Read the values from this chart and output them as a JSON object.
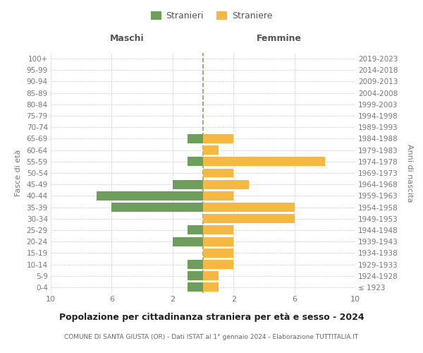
{
  "age_groups": [
    "100+",
    "95-99",
    "90-94",
    "85-89",
    "80-84",
    "75-79",
    "70-74",
    "65-69",
    "60-64",
    "55-59",
    "50-54",
    "45-49",
    "40-44",
    "35-39",
    "30-34",
    "25-29",
    "20-24",
    "15-19",
    "10-14",
    "5-9",
    "0-4"
  ],
  "birth_years": [
    "≤ 1923",
    "1924-1928",
    "1929-1933",
    "1934-1938",
    "1939-1943",
    "1944-1948",
    "1949-1953",
    "1954-1958",
    "1959-1963",
    "1964-1968",
    "1969-1973",
    "1974-1978",
    "1979-1983",
    "1984-1988",
    "1989-1993",
    "1994-1998",
    "1999-2003",
    "2004-2008",
    "2009-2013",
    "2014-2018",
    "2019-2023"
  ],
  "males": [
    0,
    0,
    0,
    0,
    0,
    0,
    0,
    1,
    0,
    1,
    0,
    2,
    7,
    6,
    0,
    1,
    2,
    0,
    1,
    1,
    1
  ],
  "females": [
    0,
    0,
    0,
    0,
    0,
    0,
    0,
    2,
    1,
    8,
    2,
    3,
    2,
    6,
    6,
    2,
    2,
    2,
    2,
    1,
    1
  ],
  "male_color": "#6d9e5a",
  "female_color": "#f5b942",
  "title": "Popolazione per cittadinanza straniera per età e sesso - 2024",
  "subtitle": "COMUNE DI SANTA GIUSTA (OR) - Dati ISTAT al 1° gennaio 2024 - Elaborazione TUTTITALIA.IT",
  "label_maschi": "Maschi",
  "label_femmine": "Femmine",
  "ylabel_left": "Fasce di età",
  "ylabel_right": "Anni di nascita",
  "legend_male": "Stranieri",
  "legend_female": "Straniere",
  "xlim": 10,
  "background_color": "#ffffff",
  "grid_color": "#cccccc",
  "centerline_color": "#999966"
}
